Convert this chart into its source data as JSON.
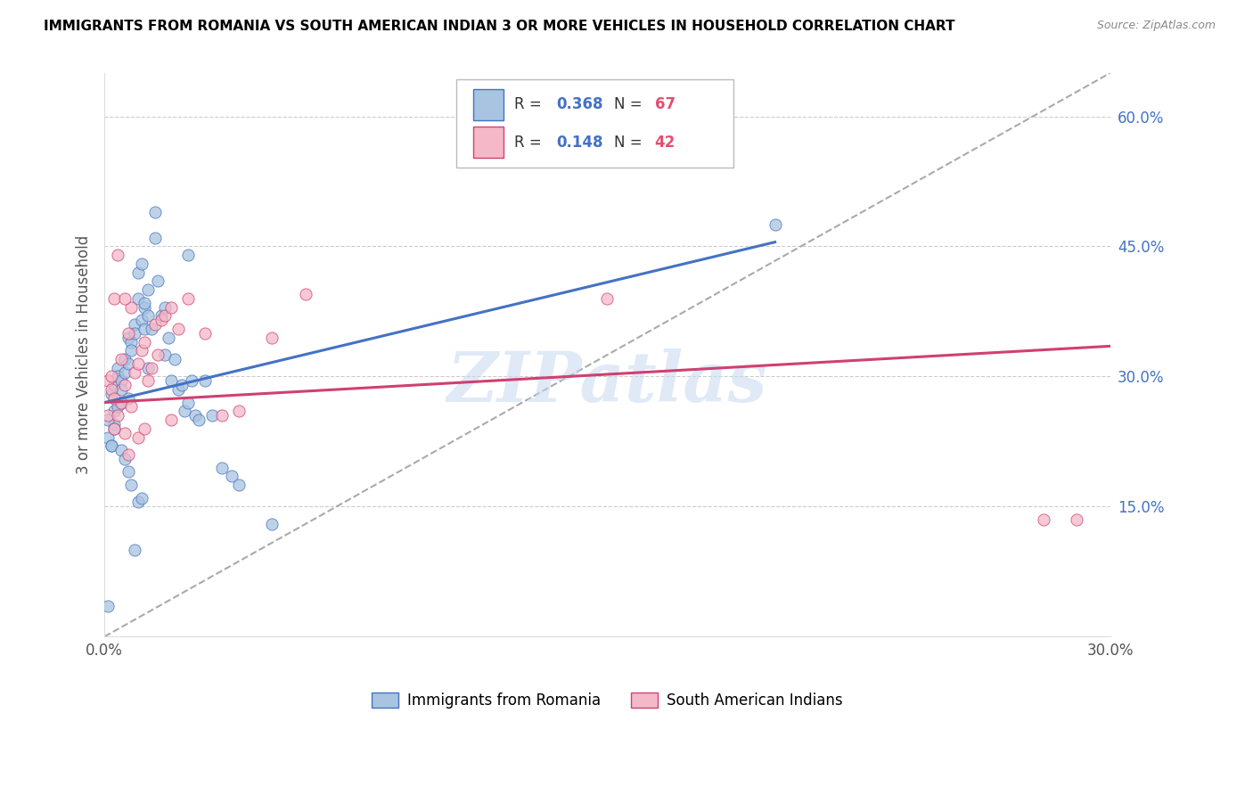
{
  "title": "IMMIGRANTS FROM ROMANIA VS SOUTH AMERICAN INDIAN 3 OR MORE VEHICLES IN HOUSEHOLD CORRELATION CHART",
  "source": "Source: ZipAtlas.com",
  "ylabel_left": "3 or more Vehicles in Household",
  "xmin": 0.0,
  "xmax": 0.3,
  "ymin": 0.0,
  "ymax": 0.65,
  "right_yticks": [
    0.15,
    0.3,
    0.45,
    0.6
  ],
  "right_yticklabels": [
    "15.0%",
    "30.0%",
    "45.0%",
    "60.0%"
  ],
  "color_romania": "#a8c4e0",
  "color_india": "#f4b8c8",
  "color_romania_line": "#4472c4",
  "color_india_line": "#d04070",
  "color_diag_line": "#aaaaaa",
  "color_r_value": "#4472c4",
  "color_n_value": "#e05070",
  "watermark": "ZIPatlas",
  "romania_scatter_x": [
    0.001,
    0.002,
    0.002,
    0.003,
    0.003,
    0.003,
    0.004,
    0.004,
    0.005,
    0.005,
    0.005,
    0.006,
    0.006,
    0.007,
    0.007,
    0.007,
    0.008,
    0.008,
    0.009,
    0.009,
    0.01,
    0.01,
    0.011,
    0.011,
    0.012,
    0.012,
    0.013,
    0.013,
    0.014,
    0.015,
    0.015,
    0.016,
    0.017,
    0.018,
    0.018,
    0.019,
    0.02,
    0.021,
    0.022,
    0.023,
    0.024,
    0.025,
    0.025,
    0.026,
    0.027,
    0.028,
    0.03,
    0.032,
    0.035,
    0.038,
    0.001,
    0.002,
    0.003,
    0.004,
    0.005,
    0.006,
    0.007,
    0.008,
    0.009,
    0.01,
    0.011,
    0.012,
    0.013,
    0.04,
    0.05,
    0.2,
    0.001
  ],
  "romania_scatter_y": [
    0.23,
    0.28,
    0.22,
    0.26,
    0.29,
    0.245,
    0.31,
    0.3,
    0.27,
    0.295,
    0.285,
    0.305,
    0.32,
    0.275,
    0.315,
    0.345,
    0.34,
    0.33,
    0.36,
    0.35,
    0.42,
    0.39,
    0.365,
    0.43,
    0.38,
    0.355,
    0.31,
    0.4,
    0.355,
    0.46,
    0.49,
    0.41,
    0.37,
    0.325,
    0.38,
    0.345,
    0.295,
    0.32,
    0.285,
    0.29,
    0.26,
    0.27,
    0.44,
    0.295,
    0.255,
    0.25,
    0.295,
    0.255,
    0.195,
    0.185,
    0.25,
    0.22,
    0.24,
    0.265,
    0.215,
    0.205,
    0.19,
    0.175,
    0.1,
    0.155,
    0.16,
    0.385,
    0.37,
    0.175,
    0.13,
    0.475,
    0.035
  ],
  "india_scatter_x": [
    0.001,
    0.001,
    0.002,
    0.002,
    0.003,
    0.003,
    0.004,
    0.004,
    0.005,
    0.005,
    0.006,
    0.006,
    0.007,
    0.007,
    0.008,
    0.008,
    0.009,
    0.01,
    0.01,
    0.011,
    0.012,
    0.013,
    0.014,
    0.015,
    0.016,
    0.017,
    0.018,
    0.02,
    0.022,
    0.025,
    0.03,
    0.035,
    0.04,
    0.05,
    0.06,
    0.15,
    0.28,
    0.29,
    0.003,
    0.006,
    0.012,
    0.02
  ],
  "india_scatter_y": [
    0.295,
    0.255,
    0.285,
    0.3,
    0.275,
    0.24,
    0.44,
    0.255,
    0.32,
    0.27,
    0.29,
    0.235,
    0.35,
    0.21,
    0.38,
    0.265,
    0.305,
    0.315,
    0.23,
    0.33,
    0.34,
    0.295,
    0.31,
    0.36,
    0.325,
    0.365,
    0.37,
    0.38,
    0.355,
    0.39,
    0.35,
    0.255,
    0.26,
    0.345,
    0.395,
    0.39,
    0.135,
    0.135,
    0.39,
    0.39,
    0.24,
    0.25
  ],
  "romania_trendline": [
    0.0,
    0.2,
    0.27,
    0.455
  ],
  "india_trendline": [
    0.0,
    0.3,
    0.27,
    0.335
  ]
}
